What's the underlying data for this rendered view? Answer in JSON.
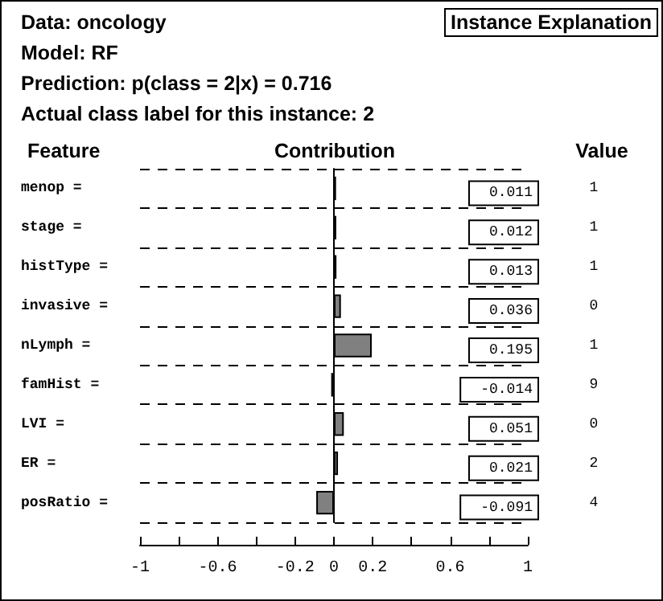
{
  "chart_data": {
    "type": "bar",
    "orientation": "horizontal",
    "title": "Instance Explanation",
    "annotations": [
      "Data: oncology",
      "Model: RF",
      "Prediction: p(class = 2|x) = 0.716",
      "Actual class label for this instance: 2"
    ],
    "ylabel": "Feature",
    "xlabel": "Contribution",
    "y2label": "Value",
    "categories": [
      "menop =",
      "stage =",
      "histType =",
      "invasive =",
      "nLymph =",
      "famHist =",
      "LVI =",
      "ER =",
      "posRatio ="
    ],
    "y2_categories": [
      "1",
      "1",
      "1",
      "0",
      "1",
      "9",
      "0",
      "2",
      "4"
    ],
    "values": [
      0.011,
      0.012,
      0.013,
      0.036,
      0.195,
      -0.014,
      0.051,
      0.021,
      -0.091
    ],
    "color": "#808080",
    "data_labels": true,
    "grid": "y",
    "line_style": "dashed",
    "xlim": [
      -1,
      1
    ],
    "xticks": [
      -1,
      {
        "value": -0.8,
        "label": null
      },
      -0.6,
      {
        "value": -0.4,
        "label": null
      },
      -0.2,
      0,
      0.2,
      {
        "value": 0.4,
        "label": null
      },
      0.6,
      {
        "value": 0.8,
        "label": null
      },
      1
    ]
  }
}
